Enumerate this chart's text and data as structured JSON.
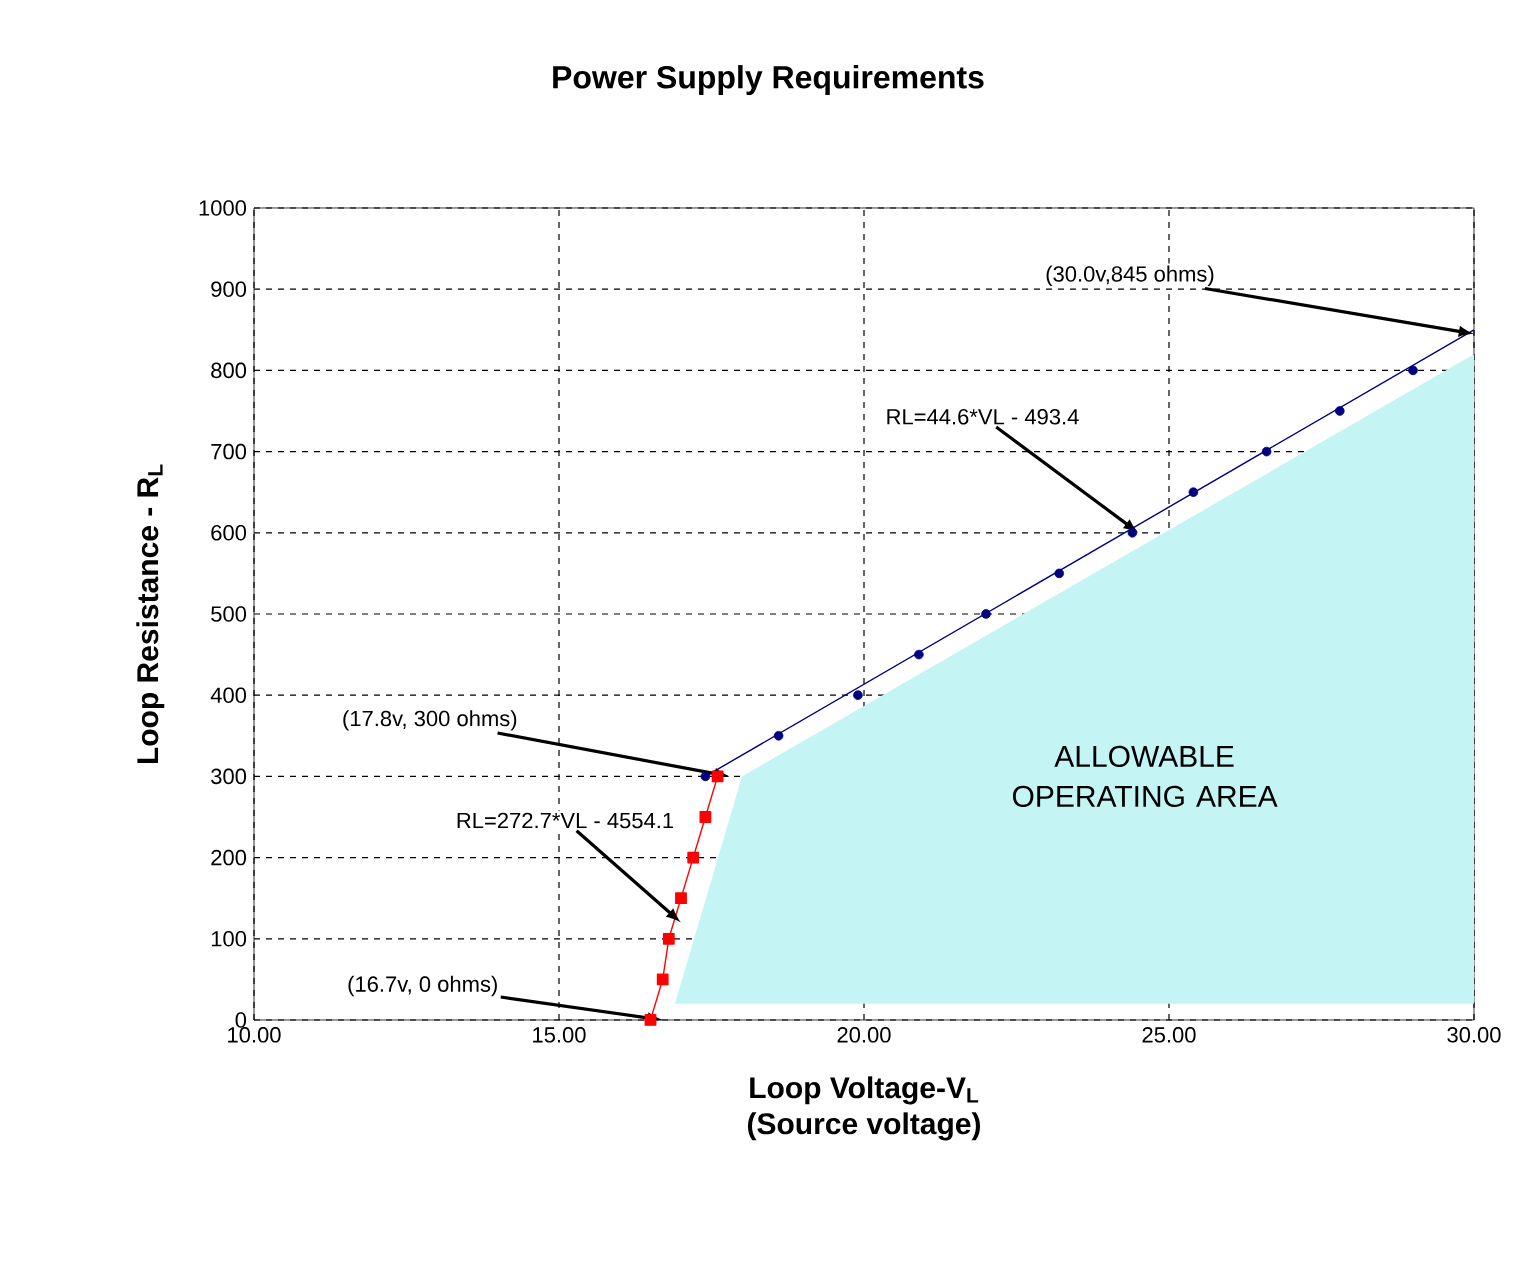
{
  "chart_data": {
    "type": "line",
    "title": "Power Supply Requirements",
    "xlabel": "Loop Voltage-V$_{L}$",
    "ylabel": "Loop Resistance - R$_{L}$",
    "xlim": [
      10,
      30
    ],
    "ylim": [
      0,
      1000
    ],
    "xticks": [
      {
        "value": 10,
        "label": "10.00"
      },
      {
        "value": 15,
        "label": "15.00"
      },
      {
        "value": 20,
        "label": "20.00"
      },
      {
        "value": 25,
        "label": "25.00"
      },
      {
        "value": 30,
        "label": "30.00"
      }
    ],
    "yticks": [
      0,
      100,
      200,
      300,
      400,
      500,
      600,
      700,
      800,
      900,
      1000
    ],
    "grid": true,
    "series": [
      {
        "type": "area",
        "color": "#c4f4f4",
        "x": [
          16.9,
          18.0,
          30.0,
          30.0
        ],
        "values": [
          20,
          300,
          820,
          20
        ]
      },
      {
        "type": "line",
        "marker": "none",
        "color": "#000080",
        "x": [
          17.4,
          30.0
        ],
        "values": [
          300,
          850
        ]
      },
      {
        "type": "scatter",
        "marker": "circle",
        "color": "#000080",
        "x": [
          17.4,
          18.6,
          19.9,
          20.9,
          22.0,
          23.2,
          24.4,
          25.4,
          26.6,
          27.8,
          29.0
        ],
        "values": [
          300,
          350,
          400,
          450,
          500,
          550,
          600,
          650,
          700,
          750,
          800
        ]
      },
      {
        "marker": "square",
        "color": "#ff0000",
        "x": [
          16.5,
          16.7,
          16.8,
          17.0,
          17.2,
          17.4,
          17.6
        ],
        "values": [
          0,
          50,
          100,
          150,
          200,
          250,
          300
        ]
      }
    ],
    "annotations": [
      {
        "text": "(30.0v,845 ohms)",
        "x": 30.0,
        "y": 845
      },
      {
        "text": "RL=44.6*VL - 493.4",
        "x": 24.5,
        "y": 600
      },
      {
        "text": "(17.8v, 300 ohms)",
        "x": 17.8,
        "y": 300
      },
      {
        "text": "RL=272.7*VL - 4554.1",
        "x": 17.0,
        "y": 120
      },
      {
        "text": "(16.7v, 0 ohms)",
        "x": 16.7,
        "y": 0
      },
      "ALLOWABLE OPERATING AREA",
      "(Source voltage)"
    ]
  }
}
